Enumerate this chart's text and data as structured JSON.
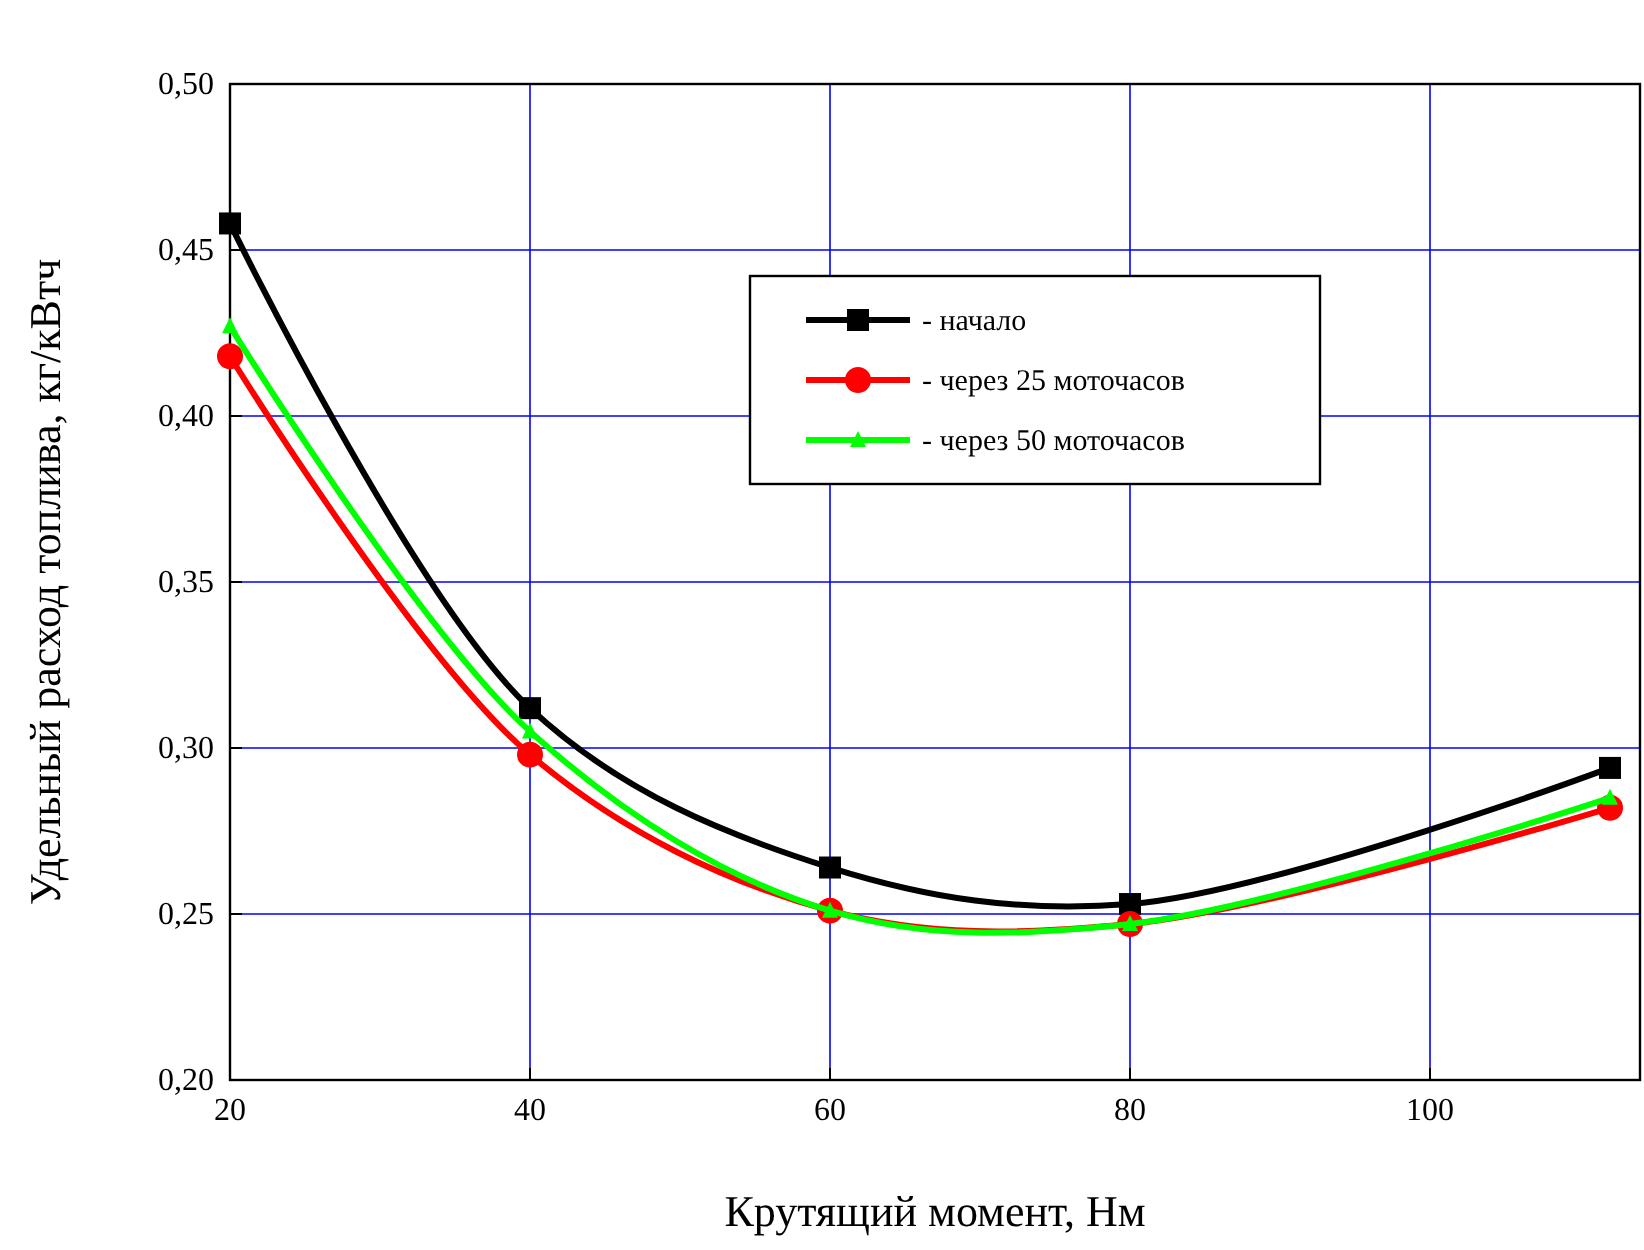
{
  "chart_data": {
    "type": "line",
    "xlabel": "Крутящий момент, Нм",
    "ylabel": "Удельный расход топлива, кг/кВтч",
    "x": [
      20,
      40,
      60,
      80,
      112
    ],
    "series": [
      {
        "name": "- начало",
        "color": "#000000",
        "values": [
          0.458,
          0.312,
          0.264,
          0.253,
          0.294
        ],
        "marker": "square"
      },
      {
        "name": "- через 25 моточасов",
        "color": "#ff0000",
        "values": [
          0.418,
          0.298,
          0.251,
          0.247,
          0.282
        ],
        "marker": "circle"
      },
      {
        "name": "- через 50 моточасов",
        "color": "#00ff00",
        "values": [
          0.427,
          0.305,
          0.251,
          0.247,
          0.285
        ],
        "marker": "triangle"
      }
    ],
    "xlim": [
      20,
      114
    ],
    "xticks": [
      20,
      40,
      60,
      80,
      100
    ],
    "ylim": [
      0.2,
      0.5
    ],
    "yticks": [
      {
        "value": 0.2,
        "label": "0,20"
      },
      {
        "value": 0.25,
        "label": "0,25"
      },
      {
        "value": 0.3,
        "label": "0,30"
      },
      {
        "value": 0.35,
        "label": "0,35"
      },
      {
        "value": 0.4,
        "label": "0,40"
      },
      {
        "value": 0.45,
        "label": "0,45"
      },
      {
        "value": 0.5,
        "label": "0,50"
      }
    ],
    "grid": true,
    "legend": "top right",
    "line_style": "solid"
  }
}
